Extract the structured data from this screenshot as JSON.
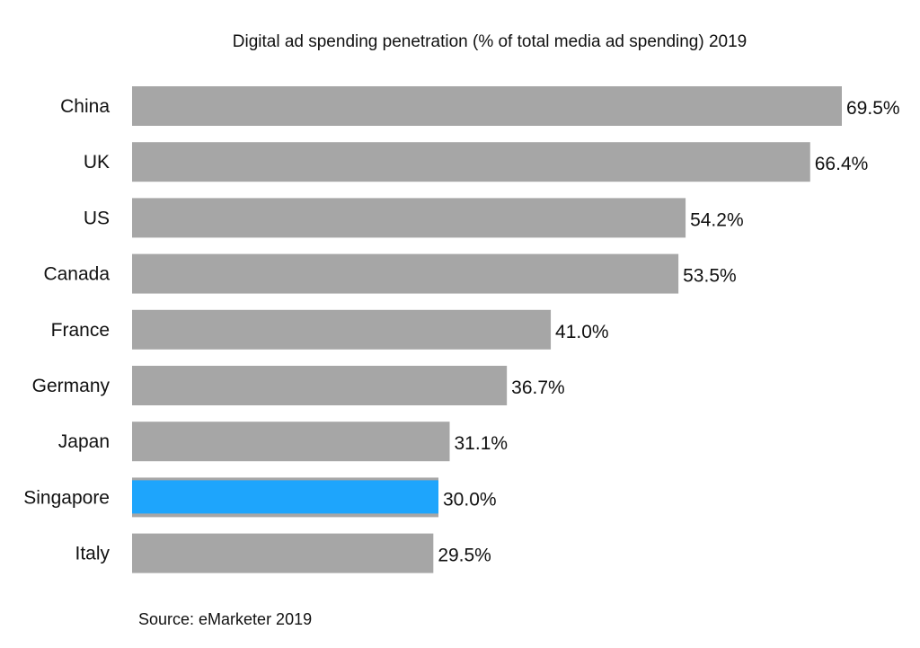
{
  "chart_data": {
    "type": "bar",
    "orientation": "horizontal",
    "title": "Digital ad spending penetration (% of total media ad spending) 2019",
    "categories": [
      "China",
      "UK",
      "US",
      "Canada",
      "France",
      "Germany",
      "Japan",
      "Singapore",
      "Italy"
    ],
    "values": [
      69.5,
      66.4,
      54.2,
      53.5,
      41.0,
      36.7,
      31.1,
      30.0,
      29.5
    ],
    "data_labels": [
      "69.5%",
      "66.4%",
      "54.2%",
      "53.5%",
      "41.0%",
      "36.7%",
      "31.1%",
      "30.0%",
      "29.5%"
    ],
    "highlight": "Singapore",
    "colors": {
      "bar": "#a6a6a6",
      "highlight": "#1ea5fc"
    },
    "grid": false,
    "legend": "none",
    "xlim": [
      0,
      69.5
    ]
  },
  "source": "Source: eMarketer 2019"
}
